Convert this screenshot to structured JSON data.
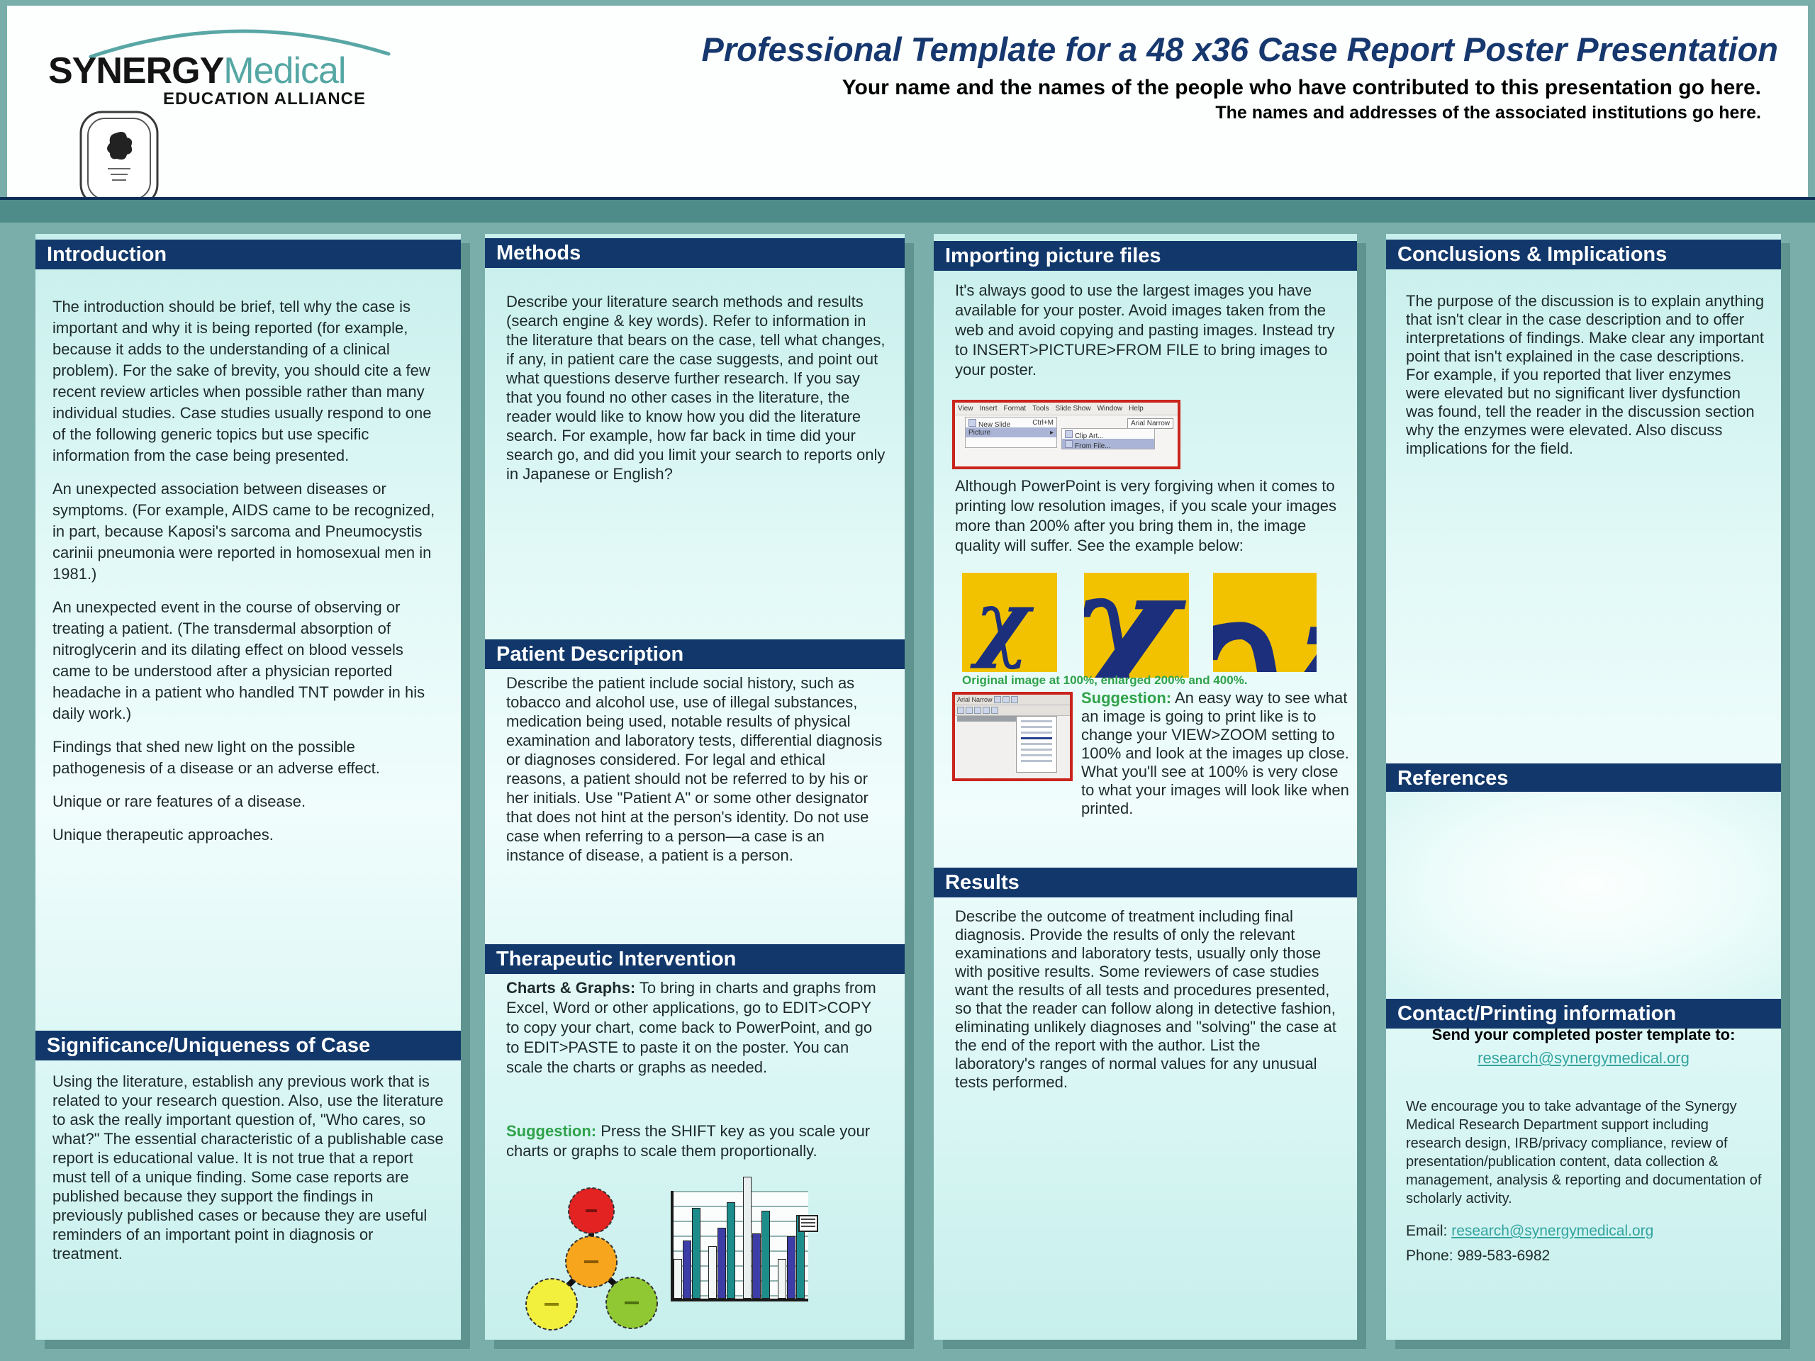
{
  "palette": {
    "background_teal": "#79aeaa",
    "band_teal": "#4e8c89",
    "panel_cyan": "#d9f6f4",
    "section_bar_navy": "#12386b",
    "title_navy": "#16386f",
    "logo_teal": "#55a7a4",
    "link_teal": "#33a49f",
    "suggestion_green": "#2fa24a",
    "screenshot_border_red": "#c9251c",
    "chi_gold": "#f2c200",
    "chi_navy": "#1b2f7d"
  },
  "header": {
    "logo": {
      "brand_bold": "SYNERGY",
      "brand_light": "Medical",
      "subtitle": "EDUCATION ALLIANCE"
    },
    "title": "Professional Template for a 48 x36 Case Report Poster Presentation",
    "subtitle1": "Your name and the names of the people who have contributed to this presentation go here.",
    "subtitle2": "The names and addresses of the associated institutions go here."
  },
  "sections": {
    "introduction": {
      "heading": "Introduction",
      "p1": "The introduction should be brief, tell why the case is important and why it is being reported (for example, because it adds to the understanding of a clinical problem). For the sake of brevity, you should cite a few recent review articles when possible rather than many individual studies. Case studies usually respond to one of the following generic topics but use specific information from the case being presented.",
      "p2": "An unexpected association between diseases or symptoms. (For example, AIDS came to be recognized, in part, because Kaposi's sarcoma and Pneumocystis carinii pneumonia were reported in homosexual men in 1981.)",
      "p3": "An unexpected event in the course of observing or treating a patient. (The transdermal absorption of nitroglycerin and its dilating effect on blood vessels came to be understood after a physician reported headache in a patient who handled TNT powder in his daily work.)",
      "p4": "Findings that shed new light on the possible pathogenesis of a disease  or an adverse effect.",
      "p5": "Unique or rare features of a disease.",
      "p6": "Unique therapeutic approaches."
    },
    "significance": {
      "heading": "Significance/Uniqueness of Case",
      "body": "Using the literature, establish any previous work that is related to your research question.  Also, use the literature to ask the really important question of, \"Who cares, so what?\" The essential characteristic of a publishable case report is educational value. It is not true that a report must tell of a unique finding. Some case reports are published because they support the findings in previously published cases or because they are useful reminders of an important point in diagnosis or treatment."
    },
    "methods": {
      "heading": "Methods",
      "body": "Describe your literature search methods and results (search engine & key words). Refer to information in the literature that bears on the case, tell what changes, if any, in patient care the case suggests, and point out what questions deserve further research. If you say that you found no other cases in the literature, the reader would like to know how you did the literature search. For example, how far back in time did your search go, and did you limit your search to reports only in Japanese or English?"
    },
    "patient": {
      "heading": "Patient Description",
      "body": "Describe the patient include social history, such as tobacco and alcohol use, use of illegal substances, medication being used, notable results of physical examination and laboratory tests, differential diagnosis or diagnoses considered. For legal and ethical reasons, a patient should not be referred to by his or her initials. Use \"Patient A\" or some other designator that does not hint at the person's identity. Do not use case when referring to a person—a case is an instance of disease, a patient is a person.",
      "heading_therapeutic": "Therapeutic Intervention"
    },
    "therapeutic": {
      "heading": "Therapeutic Intervention",
      "lead_label": "Charts & Graphs:",
      "lead_text": " To bring in charts and graphs from Excel, Word or other applications, go to EDIT>COPY to copy your chart, come back to PowerPoint, and go to EDIT>PASTE to paste it on the poster. You can scale the charts or graphs as needed.",
      "suggestion_label": "Suggestion:",
      "suggestion_text": " Press the SHIFT key as you scale your charts or graphs to scale them proportionally."
    },
    "importing": {
      "heading": "Importing picture files",
      "p1": "It's always good to use the largest images you have available for your poster. Avoid images taken from the web and avoid copying and pasting images. Instead try to INSERT>PICTURE>FROM FILE to bring images to your poster.",
      "p2": "Although PowerPoint is very forgiving when it comes to printing low resolution images, if you scale your images more than 200% after you bring them in, the image quality will suffer. See the example below:",
      "chi_glyph": "χ",
      "chi_caption": "Original image at 100%, enlarged 200% and 400%.",
      "suggestion_label": "Suggestion:",
      "suggestion_text": " An easy way to see what an image is going to print like is to change your VIEW>ZOOM setting to 100% and look at the images up close. What you'll see at 100%  is very close to what your images will look like when printed.",
      "screenshot1": {
        "menu_items": [
          "View",
          "Insert",
          "Format",
          "Tools",
          "Slide Show",
          "Window",
          "Help"
        ],
        "new_slide": "New Slide",
        "new_slide_shortcut": "Ctrl+M",
        "picture": "Picture",
        "picture_arrow": "▸",
        "clip_art": "Clip Art...",
        "from_file": "From File...",
        "font_box": "Arial Narrow"
      },
      "screenshot2": {
        "font_box": "Arial Narrow"
      }
    },
    "results": {
      "heading": "Results",
      "body": "Describe the outcome of treatment including final diagnosis. Provide the results of only the relevant examinations and laboratory tests, usually only those with positive results. Some reviewers of case studies want the results of all tests and procedures presented, so that the reader can follow along in detective fashion, eliminating unlikely diagnoses and \"solving\" the case at the end of the report with the author. List the laboratory's ranges of normal values for any unusual tests performed."
    },
    "conclusions": {
      "heading": "Conclusions & Implications",
      "body": "The purpose of the discussion is to explain anything that isn't clear in the case description and to offer interpretations of findings. Make clear any important point that isn't explained in the case descriptions. For example, if you reported that liver enzymes were elevated but no significant liver dysfunction was found, tell the reader in the discussion section why the enzymes were elevated. Also discuss implications for the field."
    },
    "references": {
      "heading": "References"
    },
    "contact": {
      "heading": "Contact/Printing information",
      "send_label": "Send your completed poster template to:",
      "send_link": "research@synergymedical.org",
      "body": "We encourage you to take advantage of the Synergy Medical Research Department support including research design, IRB/privacy compliance, review of presentation/publication content, data collection & management, analysis & reporting and documentation of scholarly activity.",
      "email_label": "Email:",
      "email_link": "research@synergymedical.org",
      "phone_label": "Phone:",
      "phone_value": "989-583-6982"
    }
  },
  "graphics": {
    "molecule_colors": [
      "#e32222",
      "#f6a51c",
      "#f3ef3d",
      "#8fc832"
    ],
    "sample_chart": {
      "clusters": [
        [
          {
            "c": "w",
            "h": 56
          },
          {
            "c": "b",
            "h": 82
          },
          {
            "c": "t",
            "h": 128
          }
        ],
        [
          {
            "c": "w",
            "h": 74
          },
          {
            "c": "b",
            "h": 100
          },
          {
            "c": "t",
            "h": 136
          }
        ],
        [
          {
            "c": "g",
            "h": 172
          },
          {
            "c": "b",
            "h": 92
          },
          {
            "c": "t",
            "h": 124
          }
        ],
        [
          {
            "c": "w",
            "h": 56
          },
          {
            "c": "b",
            "h": 88
          },
          {
            "c": "t",
            "h": 118
          }
        ]
      ]
    }
  }
}
